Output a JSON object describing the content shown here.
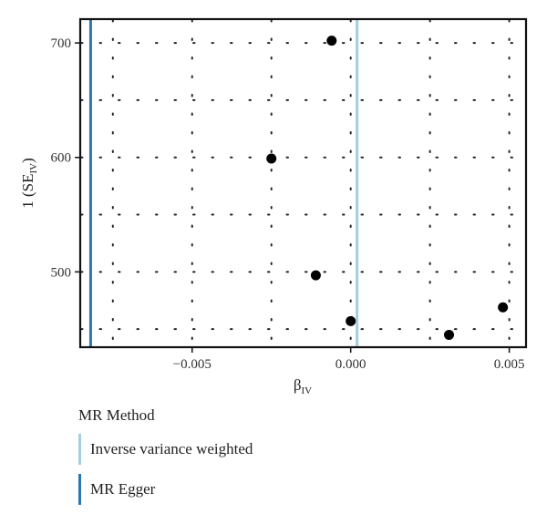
{
  "chart_data": {
    "type": "scatter",
    "title": "",
    "xlabel": "β",
    "xlabel_sub": "IV",
    "ylabel": "1 (SE",
    "ylabel_sub": "IV",
    "ylabel_tail": ")",
    "xlim": [
      -0.0085,
      0.0055
    ],
    "ylim": [
      435,
      720
    ],
    "x_ticks": [
      -0.005,
      0.0,
      0.005
    ],
    "x_tick_labels": [
      "−0.005",
      "0.000",
      "0.005"
    ],
    "y_ticks": [
      500,
      600,
      700
    ],
    "y_tick_labels": [
      "500",
      "600",
      "700"
    ],
    "grid": "dotted",
    "points": [
      {
        "x": -0.0006,
        "y": 702
      },
      {
        "x": -0.0025,
        "y": 599
      },
      {
        "x": -0.0011,
        "y": 497
      },
      {
        "x": 0.0,
        "y": 457
      },
      {
        "x": 0.0031,
        "y": 445
      },
      {
        "x": 0.0048,
        "y": 469
      }
    ],
    "lines": [
      {
        "name": "Inverse variance weighted",
        "x": 0.0002,
        "color": "#a6cde3"
      },
      {
        "name": "MR Egger",
        "x": -0.0082,
        "color": "#2b77b3"
      }
    ],
    "legend": {
      "title": "MR Method",
      "placement": "bottom-left",
      "items": [
        {
          "label": "Inverse variance weighted",
          "color": "#a6cde3"
        },
        {
          "label": "MR Egger",
          "color": "#2b77b3"
        }
      ]
    }
  }
}
